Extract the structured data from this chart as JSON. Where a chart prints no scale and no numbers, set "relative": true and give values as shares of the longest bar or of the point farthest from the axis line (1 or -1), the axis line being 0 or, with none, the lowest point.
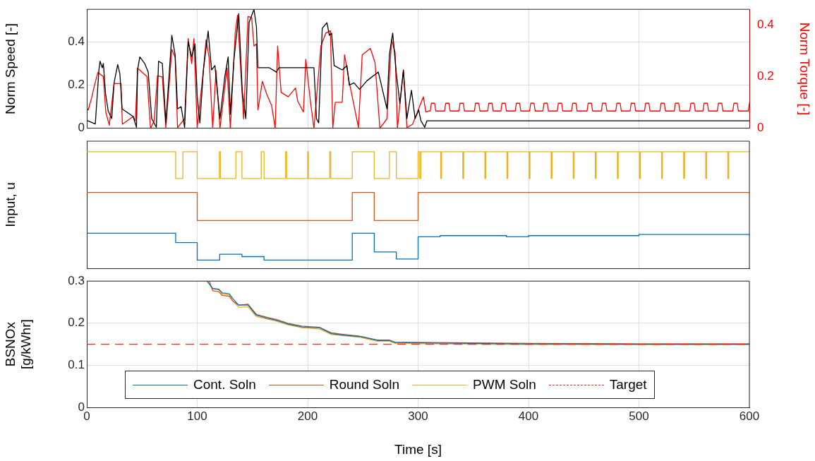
{
  "chart_data": [
    {
      "type": "line",
      "ylabel": "Norm Speed [-]",
      "y2label": "Norm Torque [-]",
      "xlim": [
        0,
        600
      ],
      "xticks": [
        0,
        100,
        200,
        300,
        400,
        500,
        600
      ],
      "ylim": [
        0,
        0.55
      ],
      "yticks": [
        0,
        0.2,
        0.4
      ],
      "y2lim": [
        0,
        0.46
      ],
      "y2ticks": [
        0,
        0.2,
        0.4
      ],
      "tick_labels": "y",
      "grid": true,
      "series": [
        {
          "color": "#000000",
          "x": [
            0,
            1,
            7.7,
            11,
            12,
            14,
            15,
            17,
            19.4,
            22.6,
            24.7,
            28,
            30,
            32,
            42,
            45,
            46,
            48,
            52.4,
            55.6,
            58.8,
            63,
            65,
            68.4,
            71.6,
            77,
            80,
            82.2,
            85.4,
            88.6,
            91.8,
            95,
            98,
            100,
            102.4,
            105.6,
            109.9,
            113,
            116,
            120.6,
            125,
            128,
            130,
            133.3,
            137.6,
            140.8,
            144,
            147,
            151.4,
            153.6,
            155,
            165.3,
            171.7,
            174,
            186.6,
            196,
            199,
            205.7,
            208,
            210,
            213.2,
            217.5,
            219.6,
            221.7,
            224,
            231.3,
            235.6,
            237.7,
            242,
            247,
            253.7,
            264,
            271.8,
            274,
            277,
            280.4,
            283.5,
            286.7,
            289.9,
            294,
            297.3,
            300.5,
            302.6,
            306,
            308,
            310,
            400,
            500,
            600
          ],
          "values": [
            0.035,
            0.035,
            0.02,
            0.27,
            0.31,
            0.28,
            0.3,
            0.16,
            0.08,
            0.045,
            0.21,
            0.295,
            0.25,
            0.09,
            0.055,
            0.005,
            0.27,
            0.33,
            0.3,
            0.26,
            0.045,
            0.005,
            0.31,
            0.3,
            0.025,
            0.43,
            0.34,
            0.09,
            0.1,
            0.005,
            0.4,
            0.33,
            0.39,
            0.147,
            0.025,
            0.27,
            0.45,
            0.27,
            0.29,
            0.045,
            0.24,
            0.33,
            0.065,
            0.32,
            0.53,
            0.17,
            0.045,
            0.49,
            0.55,
            0.47,
            0.28,
            0.28,
            0.26,
            0.28,
            0.28,
            0.28,
            0.28,
            0.28,
            0.045,
            0.025,
            0.462,
            0.488,
            0.43,
            0.44,
            0.29,
            0.27,
            0.29,
            0.2,
            0.21,
            0.18,
            0.22,
            0.26,
            0.09,
            0.34,
            0.44,
            0.25,
            0.115,
            0.27,
            0.045,
            0.176,
            0.045,
            0.085,
            0.035,
            0.005,
            0.035,
            0.035,
            0.035,
            0.035,
            0.035
          ]
        },
        {
          "color": "#ff0000",
          "axis": "y2",
          "x": [
            0,
            1.3,
            4.5,
            6.6,
            10,
            15,
            17.2,
            20.4,
            24.7,
            31,
            32.2,
            42,
            44,
            46,
            54.5,
            57.7,
            61,
            64,
            68.4,
            71.6,
            77,
            80,
            82.2,
            88.6,
            91.8,
            95,
            97,
            100,
            105.6,
            108,
            110.7,
            114,
            117,
            120.6,
            127,
            130,
            134.4,
            136.5,
            142,
            146,
            149.3,
            151.4,
            153.6,
            155,
            159,
            163,
            167.4,
            170.6,
            172.8,
            176,
            182.4,
            189,
            191,
            196.2,
            198.3,
            202.5,
            205.7,
            212,
            216.4,
            220.6,
            222.8,
            225,
            231.3,
            233.4,
            237.7,
            246,
            249.4,
            256.8,
            261,
            265.4,
            271.8,
            276,
            279.2,
            281.3,
            286.7,
            289.9,
            295,
            304.8,
            307,
            310,
            311,
            312,
            315,
            316,
            324,
            325,
            328,
            329,
            337,
            338,
            341,
            342,
            351,
            352,
            355,
            356,
            363,
            364,
            367,
            368,
            375,
            376,
            379,
            380,
            388,
            389,
            392,
            393,
            401,
            402,
            405,
            406,
            413,
            414,
            417,
            418,
            426,
            427,
            430,
            431,
            439,
            440,
            443,
            444,
            453,
            454,
            457,
            458,
            466,
            467,
            470,
            471,
            479,
            480,
            483,
            484,
            492,
            493,
            496,
            497,
            505,
            506,
            509,
            510,
            519,
            520,
            523,
            524,
            532,
            533,
            536,
            537,
            546,
            547,
            550,
            551,
            558,
            559,
            562,
            563,
            571,
            572,
            575,
            576,
            585,
            586,
            589,
            590,
            599,
            600
          ],
          "values": [
            0.08,
            0.071,
            0.12,
            0.16,
            0.216,
            0.2,
            0.063,
            0.012,
            0.173,
            0.173,
            0.016,
            0.046,
            0.029,
            0.233,
            0.2,
            0,
            0.029,
            0.203,
            0.199,
            0.003,
            0.305,
            0.275,
            0.003,
            0.037,
            0.347,
            0.25,
            0.347,
            0.003,
            0.224,
            0.343,
            0.275,
            0,
            0.224,
            0,
            0.233,
            0,
            0.368,
            0.437,
            0.037,
            0.432,
            0.428,
            0.318,
            0.326,
            0.071,
            0.182,
            0.131,
            0.088,
            0,
            0.318,
            0.139,
            0.122,
            0.156,
            0.105,
            0.063,
            0.267,
            0.105,
            0,
            0.318,
            0.368,
            0.377,
            0.003,
            0.101,
            0.101,
            0.284,
            0.178,
            0.003,
            0.284,
            0.309,
            0.254,
            0,
            0.037,
            0.343,
            0.292,
            0,
            0.224,
            0.003,
            0.016,
            0.122,
            0.063,
            0.067,
            0.067,
            0.097,
            0.097,
            0.067,
            0.067,
            0.097,
            0.097,
            0.067,
            0.067,
            0.097,
            0.097,
            0.067,
            0.067,
            0.097,
            0.097,
            0.067,
            0.067,
            0.097,
            0.097,
            0.067,
            0.067,
            0.097,
            0.097,
            0.067,
            0.067,
            0.097,
            0.097,
            0.067,
            0.067,
            0.097,
            0.097,
            0.067,
            0.067,
            0.097,
            0.097,
            0.067,
            0.067,
            0.097,
            0.097,
            0.067,
            0.067,
            0.097,
            0.097,
            0.067,
            0.067,
            0.097,
            0.097,
            0.067,
            0.067,
            0.097,
            0.097,
            0.067,
            0.067,
            0.097,
            0.097,
            0.067,
            0.067,
            0.097,
            0.097,
            0.067,
            0.067,
            0.097,
            0.097,
            0.067,
            0.067,
            0.097,
            0.097,
            0.067,
            0.067,
            0.097,
            0.097,
            0.067,
            0.067,
            0.097,
            0.097,
            0.067,
            0.067,
            0.097,
            0.097,
            0.067,
            0.067,
            0.097,
            0.097,
            0.067,
            0.067,
            0.097,
            0.097,
            0.067,
            0.067,
            0.097
          ]
        }
      ]
    },
    {
      "type": "step",
      "relative": true,
      "ylabel": "Input, u",
      "xlim": [
        0,
        600
      ],
      "xticks": [
        0,
        100,
        200,
        300,
        400,
        500,
        600
      ],
      "tick_labels": false,
      "grid": "x",
      "series": [
        {
          "color": "#edb120",
          "x": [
            0,
            80.5,
            87,
            100,
            120,
            121,
            135,
            140.5,
            158,
            160.5,
            180,
            181,
            200,
            200.7,
            220,
            221,
            240.4,
            260.3,
            274,
            280.3,
            300,
            301.5,
            302.5,
            320.5,
            321.3,
            340.5,
            341.3,
            360.5,
            361.3,
            380.5,
            381.3,
            400.5,
            401.3,
            420.5,
            421.3,
            440.5,
            441.3,
            460.5,
            461.3,
            480.5,
            481.3,
            500.5,
            501.3,
            520.5,
            521.3,
            540.5,
            541.3,
            560.5,
            561.3,
            580.5,
            581.3,
            600
          ],
          "values": [
            1,
            0.77,
            1,
            0.77,
            1,
            0.77,
            1,
            0.77,
            1,
            0.77,
            1,
            0.77,
            1,
            0.77,
            1,
            0.77,
            1,
            0.77,
            1,
            0.77,
            1,
            0.77,
            1,
            0.77,
            1,
            0.77,
            1,
            0.77,
            1,
            0.77,
            1,
            0.77,
            1,
            0.77,
            1,
            0.77,
            1,
            0.77,
            1,
            0.77,
            1,
            0.77,
            1,
            0.77,
            1,
            0.77,
            1,
            0.77,
            1,
            0.77,
            1,
            1
          ]
        },
        {
          "color": "#d95319",
          "x": [
            0,
            100,
            240.4,
            260.3,
            300,
            600
          ],
          "values": [
            0.65,
            0.41,
            0.65,
            0.41,
            0.65,
            0.65
          ]
        },
        {
          "color": "#0072bd",
          "x": [
            0,
            80.5,
            100,
            120.3,
            140.5,
            160.5,
            240.4,
            260.3,
            280.3,
            300,
            320,
            380,
            400,
            500,
            600
          ],
          "values": [
            0.3,
            0.22,
            0.07,
            0.12,
            0.1,
            0.07,
            0.3,
            0.14,
            0.08,
            0.27,
            0.28,
            0.27,
            0.28,
            0.29,
            0.29
          ]
        }
      ]
    },
    {
      "type": "line",
      "xlabel": "Time [s]",
      "ylabel": "BSNOx\n[g/kWhr]",
      "xlim": [
        0,
        600
      ],
      "xticks": [
        0,
        100,
        200,
        300,
        400,
        500,
        600
      ],
      "ylim": [
        0,
        0.3
      ],
      "yticks": [
        0,
        0.1,
        0.2,
        0.3
      ],
      "grid": true,
      "legend": "bottom",
      "ref_lines": [
        {
          "axis": "y",
          "value": 0.15,
          "label": "Target",
          "color": "#e8262a",
          "line_style": "dashed"
        }
      ],
      "series": [
        {
          "name": "Cont. Soln",
          "color": "#0072bd",
          "x": [
            108.8,
            114,
            119.5,
            122.7,
            129,
            132,
            137.5,
            146,
            153.5,
            163,
            171.5,
            182,
            195,
            211,
            221.6,
            231,
            248,
            263,
            274,
            279,
            314,
            400,
            500,
            600
          ],
          "values": [
            0.3,
            0.283,
            0.281,
            0.272,
            0.27,
            0.259,
            0.243,
            0.243,
            0.219,
            0.212,
            0.207,
            0.198,
            0.191,
            0.189,
            0.175,
            0.172,
            0.168,
            0.159,
            0.159,
            0.154,
            0.153,
            0.151,
            0.15,
            0.15
          ]
        },
        {
          "name": "Round Soln",
          "color": "#d95319",
          "x": [
            111,
            114,
            119.5,
            122.7,
            129,
            132,
            137.5,
            146,
            153.5,
            163,
            171.5,
            182,
            195,
            211,
            221.6,
            231,
            248,
            263,
            274,
            279,
            314,
            400,
            500,
            600
          ],
          "values": [
            0.3,
            0.277,
            0.275,
            0.266,
            0.264,
            0.253,
            0.243,
            0.245,
            0.221,
            0.214,
            0.209,
            0.2,
            0.193,
            0.19,
            0.177,
            0.174,
            0.169,
            0.16,
            0.16,
            0.155,
            0.154,
            0.152,
            0.151,
            0.151
          ]
        },
        {
          "name": "PWM Soln",
          "color": "#edb120",
          "x": [
            109.5,
            114,
            119.5,
            122.7,
            129,
            132,
            137.5,
            146,
            153.5,
            163,
            171.5,
            182,
            195,
            211,
            221.6,
            231,
            248,
            263,
            274,
            279,
            314,
            400,
            500,
            600
          ],
          "values": [
            0.3,
            0.281,
            0.279,
            0.269,
            0.267,
            0.254,
            0.238,
            0.239,
            0.216,
            0.21,
            0.205,
            0.196,
            0.189,
            0.186,
            0.173,
            0.171,
            0.166,
            0.157,
            0.157,
            0.152,
            0.151,
            0.149,
            0.149,
            0.149
          ]
        }
      ]
    }
  ]
}
